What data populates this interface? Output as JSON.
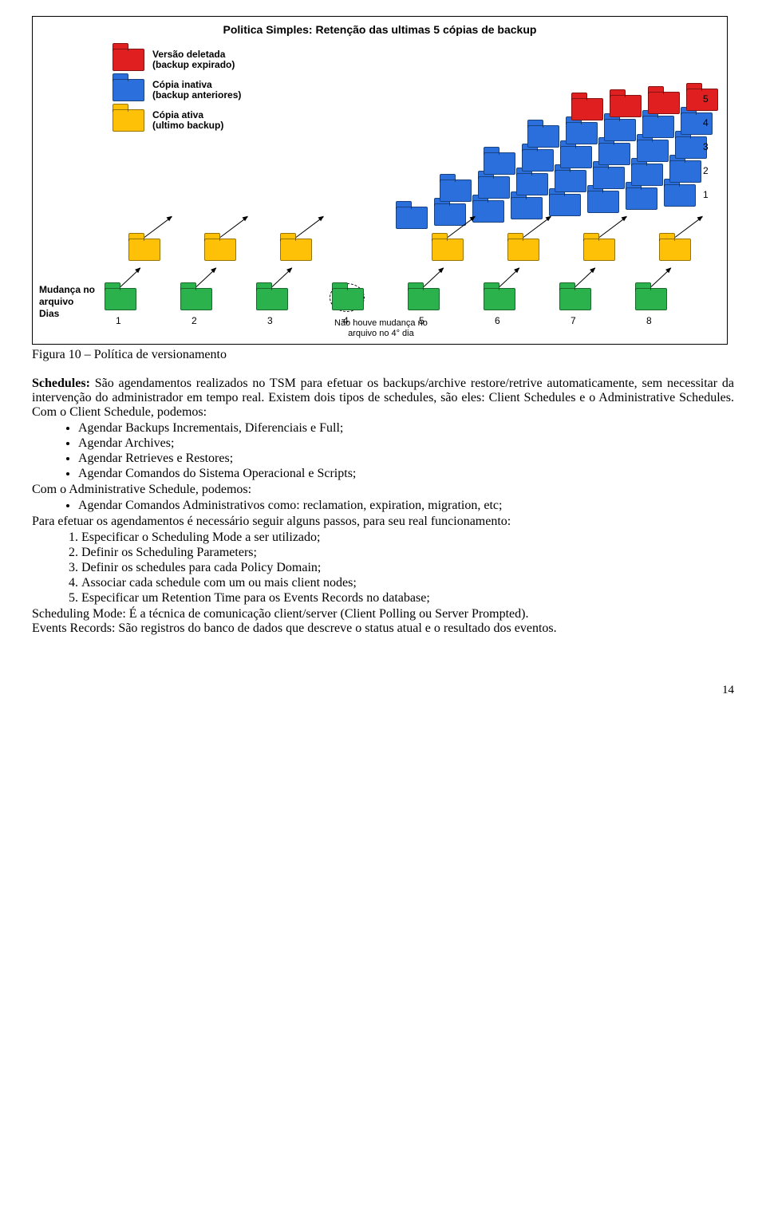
{
  "diagram": {
    "title": "Politica Simples: Retenção das ultimas 5 cópias de backup",
    "legend": {
      "red": {
        "l1": "Versão deletada",
        "l2": "(backup expirado)"
      },
      "blue": {
        "l1": "Cópia inativa",
        "l2": "(backup anteriores)"
      },
      "yellow": {
        "l1": "Cópia ativa",
        "l2": "(ultimo backup)"
      }
    },
    "axis": {
      "l1": "Mudança no",
      "l2": "arquivo",
      "l3": "Dias"
    },
    "note": {
      "l1": "Não houve mudança no",
      "l2": "arquivo no 4° dia"
    },
    "days": [
      "1",
      "2",
      "3",
      "4",
      "5",
      "6",
      "7",
      "8"
    ],
    "rows": [
      "1",
      "2",
      "3",
      "4",
      "5"
    ],
    "colors": {
      "red": "#e02020",
      "blue": "#2a6fdb",
      "yellow": "#ffc107",
      "green": "#2bb24c"
    }
  },
  "caption": "Figura 10 – Política de versionamento",
  "para1_a": "Schedules:",
  "para1_b": " São agendamentos realizados no TSM para efetuar os backups/archive restore/retrive automaticamente, sem necessitar da intervenção do administrador em tempo real. Existem dois tipos de schedules, são eles: Client Schedules e o Administrative Schedules. Com o Client Schedule, podemos:",
  "bullets1": [
    "Agendar Backups Incrementais, Diferenciais e Full;",
    "Agendar Archives;",
    "Agendar Retrieves e Restores;",
    "Agendar Comandos do Sistema Operacional e Scripts;"
  ],
  "line2": "Com o Administrative Schedule, podemos:",
  "bullets2": [
    "Agendar Comandos Administrativos como: reclamation, expiration, migration, etc;"
  ],
  "line3": "Para efetuar os agendamentos é necessário seguir alguns passos, para seu real funcionamento:",
  "steps": [
    "Especificar o Scheduling Mode a ser utilizado;",
    "Definir os Scheduling Parameters;",
    "Definir os schedules para cada Policy Domain;",
    "Associar cada schedule com um ou mais client nodes;",
    "Especificar um Retention Time para os Events Records no database;"
  ],
  "para4": "Scheduling Mode: É a técnica de comunicação client/server (Client Polling ou Server Prompted).",
  "para5": "Events Records: São registros do banco de dados que descreve o status atual e o resultado dos eventos.",
  "page": "14"
}
